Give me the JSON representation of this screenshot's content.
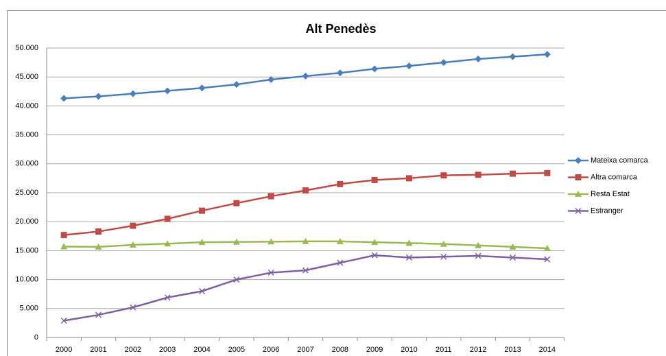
{
  "chart_data": {
    "type": "line",
    "title": "Alt Penedès",
    "categories": [
      "2000",
      "2001",
      "2002",
      "2003",
      "2004",
      "2005",
      "2006",
      "2007",
      "2008",
      "2009",
      "2010",
      "2011",
      "2012",
      "2013",
      "2014"
    ],
    "series": [
      {
        "name": "Mateixa comarca",
        "color": "#4a7ebb",
        "marker": "diamond",
        "values": [
          41300,
          41650,
          42100,
          42600,
          43100,
          43700,
          44550,
          45150,
          45700,
          46400,
          46900,
          47500,
          48100,
          48500,
          48900
        ]
      },
      {
        "name": "Altra comarca",
        "color": "#be4b48",
        "marker": "square",
        "values": [
          17700,
          18300,
          19300,
          20500,
          21900,
          23200,
          24400,
          25400,
          26500,
          27200,
          27500,
          28000,
          28100,
          28300,
          28400
        ]
      },
      {
        "name": "Resta Estat",
        "color": "#98b954",
        "marker": "triangle",
        "values": [
          15700,
          15650,
          16000,
          16200,
          16450,
          16500,
          16550,
          16600,
          16600,
          16450,
          16300,
          16150,
          15900,
          15650,
          15400
        ]
      },
      {
        "name": "Estranger",
        "color": "#7d60a0",
        "marker": "x",
        "values": [
          2900,
          3900,
          5200,
          6900,
          8000,
          10000,
          11200,
          11600,
          12900,
          14200,
          13800,
          13950,
          14100,
          13800,
          13500
        ]
      }
    ],
    "ylim": [
      0,
      50000
    ],
    "yticks": [
      0,
      {
        "value": 5000,
        "label": "5.000"
      },
      {
        "value": 10000,
        "label": "10.000"
      },
      {
        "value": 15000,
        "label": "15.000"
      },
      {
        "value": 20000,
        "label": "20.000"
      },
      {
        "value": 25000,
        "label": "25.000"
      },
      {
        "value": 30000,
        "label": "30.000"
      },
      {
        "value": 35000,
        "label": "35.000"
      },
      {
        "value": 40000,
        "label": "40.000"
      },
      {
        "value": 45000,
        "label": "45.000"
      },
      {
        "value": 50000,
        "label": "50.000"
      }
    ],
    "grid": true,
    "legend": "right"
  }
}
